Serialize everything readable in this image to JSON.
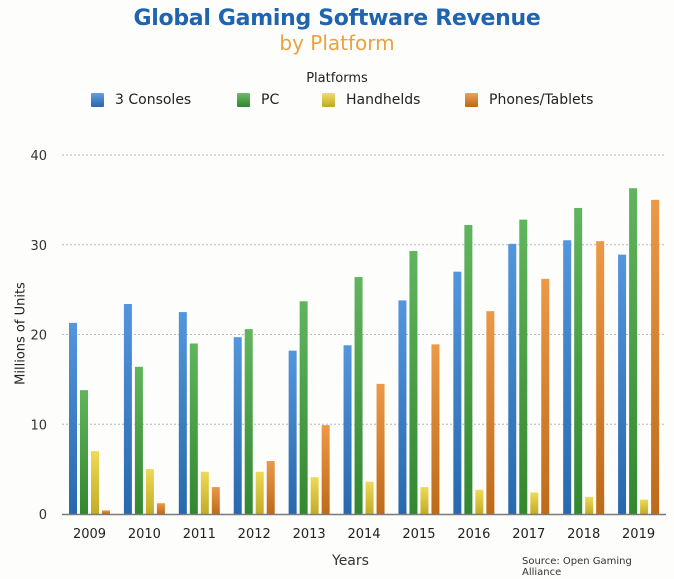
{
  "chart_data": {
    "type": "bar",
    "title": "Global Gaming Software Revenue",
    "subtitle": "by Platform",
    "legend_title": "Platforms",
    "legend_position": "top",
    "xlabel": "Years",
    "ylabel": "Millions of Units",
    "source": "Source: Open Gaming Alliance",
    "ylim": [
      0,
      40
    ],
    "yticks": [
      0,
      10,
      20,
      30,
      40
    ],
    "grid": true,
    "categories": [
      "2009",
      "2010",
      "2011",
      "2012",
      "2013",
      "2014",
      "2015",
      "2016",
      "2017",
      "2018",
      "2019"
    ],
    "series": [
      {
        "name": "3 Consoles",
        "color": "#2f7fd6",
        "values": [
          21.3,
          23.4,
          22.5,
          19.7,
          18.2,
          18.8,
          23.8,
          27.0,
          30.1,
          30.5,
          28.9
        ]
      },
      {
        "name": "PC",
        "color": "#3da53a",
        "values": [
          13.8,
          16.4,
          19.0,
          20.6,
          23.7,
          26.4,
          29.3,
          32.2,
          32.8,
          34.1,
          36.3
        ]
      },
      {
        "name": "Handhelds",
        "color": "#ecd230",
        "values": [
          7.0,
          5.0,
          4.7,
          4.7,
          4.1,
          3.6,
          3.0,
          2.7,
          2.4,
          1.9,
          1.6
        ]
      },
      {
        "name": "Phones/Tablets",
        "color": "#e8821e",
        "values": [
          0.4,
          1.2,
          3.0,
          5.9,
          9.9,
          14.5,
          18.9,
          22.6,
          26.2,
          30.4,
          35.0
        ]
      }
    ]
  }
}
